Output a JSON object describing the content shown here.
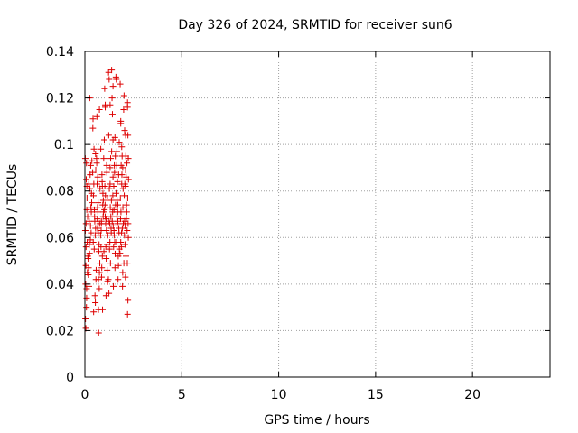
{
  "chart_data": {
    "type": "scatter",
    "title": "Day 326 of 2024, SRMTID for receiver sun6",
    "xlabel": "GPS time / hours",
    "ylabel": "SRMTID / TECUs",
    "xlim": [
      0,
      24
    ],
    "ylim": [
      0,
      0.14
    ],
    "xticks": [
      "0",
      "5",
      "10",
      "15",
      "20"
    ],
    "yticks": [
      "0",
      "0.02",
      "0.04",
      "0.06",
      "0.08",
      "0.1",
      "0.12",
      "0.14"
    ],
    "grid": true,
    "marker": "plus",
    "color": "#dd0000",
    "series": [
      {
        "x": [
          0.02,
          0.05,
          0.08,
          0.1,
          0.04,
          0.07,
          0.12,
          0.03,
          0.06,
          0.09,
          0.11,
          0.15,
          0.05,
          0.08,
          0.13,
          0.02,
          0.1,
          0.06,
          0.14,
          0.09,
          0.2,
          0.25,
          0.22,
          0.3,
          0.28,
          0.18,
          0.35,
          0.24,
          0.32,
          0.27,
          0.21,
          0.33,
          0.26,
          0.19,
          0.29,
          0.23,
          0.36,
          0.31,
          0.17,
          0.34,
          0.42,
          0.45,
          0.5,
          0.48,
          0.4,
          0.55,
          0.47,
          0.52,
          0.44,
          0.58,
          0.41,
          0.53,
          0.46,
          0.57,
          0.49,
          0.43,
          0.56,
          0.51,
          0.54,
          0.6,
          0.62,
          0.65,
          0.7,
          0.68,
          0.72,
          0.66,
          0.75,
          0.64,
          0.71,
          0.69,
          0.63,
          0.74,
          0.67,
          0.73,
          0.61,
          0.77,
          0.76,
          0.78,
          0.7,
          0.65,
          0.82,
          0.85,
          0.9,
          0.88,
          0.92,
          0.86,
          0.95,
          0.84,
          0.91,
          0.89,
          0.83,
          0.94,
          0.87,
          0.93,
          0.81,
          0.97,
          0.96,
          0.98,
          0.9,
          0.85,
          1.02,
          1.05,
          1.1,
          1.08,
          1.12,
          1.06,
          1.15,
          1.04,
          1.11,
          1.09,
          1.03,
          1.14,
          1.07,
          1.13,
          1.01,
          1.17,
          1.16,
          1.18,
          1.1,
          1.05,
          1.22,
          1.25,
          1.3,
          1.28,
          1.32,
          1.26,
          1.35,
          1.24,
          1.31,
          1.29,
          1.23,
          1.34,
          1.27,
          1.33,
          1.21,
          1.37,
          1.36,
          1.38,
          1.3,
          1.25,
          1.42,
          1.45,
          1.5,
          1.48,
          1.52,
          1.46,
          1.55,
          1.44,
          1.51,
          1.49,
          1.43,
          1.54,
          1.47,
          1.53,
          1.41,
          1.57,
          1.56,
          1.58,
          1.5,
          1.45,
          1.62,
          1.65,
          1.7,
          1.68,
          1.72,
          1.66,
          1.75,
          1.64,
          1.71,
          1.69,
          1.63,
          1.74,
          1.67,
          1.73,
          1.61,
          1.77,
          1.76,
          1.78,
          1.7,
          1.65,
          1.82,
          1.85,
          1.9,
          1.88,
          1.92,
          1.86,
          1.95,
          1.84,
          1.91,
          1.89,
          1.83,
          1.94,
          1.87,
          1.93,
          1.81,
          1.97,
          1.96,
          1.98,
          1.9,
          1.85,
          2.02,
          2.05,
          2.1,
          2.08,
          2.12,
          2.06,
          2.15,
          2.04,
          2.11,
          2.09,
          2.03,
          2.14,
          2.07,
          2.13,
          2.01,
          2.17,
          2.16,
          2.18,
          2.1,
          2.05,
          2.2,
          2.22,
          2.24,
          2.21,
          2.23,
          2.19,
          2.25,
          2.2,
          2.22,
          2.24,
          1.38,
          1.45,
          1.3,
          0.75,
          1.05,
          1.55,
          1.6,
          1.85,
          2.0,
          2.1,
          0.55,
          1.0,
          1.4,
          1.95,
          2.2
        ],
        "y": [
          0.094,
          0.048,
          0.03,
          0.072,
          0.04,
          0.085,
          0.058,
          0.025,
          0.066,
          0.038,
          0.077,
          0.052,
          0.021,
          0.092,
          0.045,
          0.063,
          0.082,
          0.056,
          0.069,
          0.034,
          0.083,
          0.12,
          0.067,
          0.091,
          0.059,
          0.044,
          0.075,
          0.053,
          0.062,
          0.087,
          0.039,
          0.071,
          0.081,
          0.047,
          0.065,
          0.057,
          0.093,
          0.073,
          0.051,
          0.079,
          0.111,
          0.028,
          0.069,
          0.055,
          0.088,
          0.064,
          0.098,
          0.035,
          0.078,
          0.046,
          0.107,
          0.061,
          0.083,
          0.042,
          0.072,
          0.058,
          0.089,
          0.067,
          0.032,
          0.094,
          0.112,
          0.064,
          0.029,
          0.075,
          0.054,
          0.086,
          0.045,
          0.068,
          0.019,
          0.062,
          0.083,
          0.038,
          0.071,
          0.057,
          0.092,
          0.049,
          0.066,
          0.081,
          0.042,
          0.073,
          0.098,
          0.066,
          0.052,
          0.087,
          0.074,
          0.043,
          0.076,
          0.063,
          0.029,
          0.084,
          0.056,
          0.069,
          0.047,
          0.079,
          0.061,
          0.094,
          0.071,
          0.054,
          0.082,
          0.067,
          0.124,
          0.117,
          0.068,
          0.056,
          0.091,
          0.078,
          0.046,
          0.074,
          0.063,
          0.035,
          0.082,
          0.057,
          0.066,
          0.088,
          0.072,
          0.041,
          0.077,
          0.061,
          0.051,
          0.069,
          0.131,
          0.128,
          0.09,
          0.066,
          0.049,
          0.081,
          0.064,
          0.036,
          0.073,
          0.058,
          0.104,
          0.069,
          0.055,
          0.094,
          0.042,
          0.076,
          0.062,
          0.097,
          0.083,
          0.067,
          0.113,
          0.086,
          0.072,
          0.056,
          0.091,
          0.065,
          0.047,
          0.078,
          0.061,
          0.082,
          0.071,
          0.058,
          0.039,
          0.088,
          0.067,
          0.095,
          0.053,
          0.074,
          0.063,
          0.102,
          0.128,
          0.097,
          0.067,
          0.084,
          0.052,
          0.076,
          0.064,
          0.091,
          0.042,
          0.071,
          0.058,
          0.087,
          0.066,
          0.048,
          0.079,
          0.101,
          0.062,
          0.055,
          0.074,
          0.069,
          0.126,
          0.109,
          0.083,
          0.056,
          0.095,
          0.071,
          0.045,
          0.068,
          0.087,
          0.062,
          0.077,
          0.039,
          0.091,
          0.064,
          0.053,
          0.081,
          0.073,
          0.066,
          0.099,
          0.058,
          0.121,
          0.106,
          0.089,
          0.065,
          0.052,
          0.083,
          0.074,
          0.061,
          0.095,
          0.043,
          0.078,
          0.068,
          0.057,
          0.086,
          0.049,
          0.092,
          0.071,
          0.063,
          0.082,
          0.067,
          0.116,
          0.104,
          0.094,
          0.077,
          0.066,
          0.049,
          0.085,
          0.027,
          0.033,
          0.06,
          0.132,
          0.125,
          0.117,
          0.115,
          0.116,
          0.103,
          0.129,
          0.11,
          0.115,
          0.104,
          0.096,
          0.102,
          0.12,
          0.09,
          0.118
        ]
      }
    ]
  }
}
